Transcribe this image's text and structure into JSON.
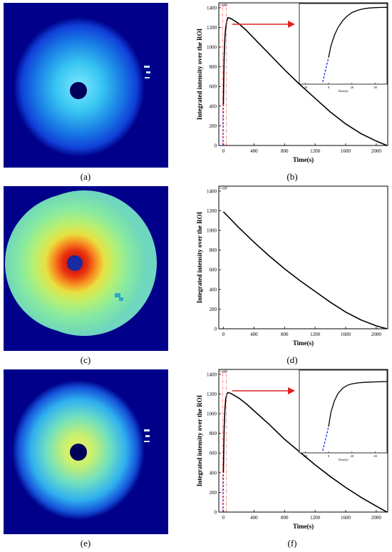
{
  "captions": {
    "a": "(a)",
    "b": "(b)",
    "c": "(c)",
    "d": "(d)",
    "e": "(e)",
    "f": "(f)"
  },
  "colors": {
    "image_background": "#00008a",
    "curve": "#000000",
    "pre_segment": "#1f3cff",
    "window": "#ff6060",
    "arrow": "#e02020"
  },
  "chart_data": [
    {
      "type": "line",
      "panel": "b",
      "ylabel": "Integrated intensity over the ROI",
      "xlabel": "Time(s)",
      "y_multiplier": "×10⁶",
      "xlim": [
        -60,
        2150
      ],
      "ylim": [
        0,
        1450
      ],
      "xticks": [
        0,
        400,
        800,
        1200,
        1600,
        2000
      ],
      "yticks": [
        0,
        200,
        400,
        600,
        800,
        1000,
        1200,
        1400
      ],
      "series": [
        {
          "style": "dashed-blue",
          "x": [
            -5,
            0
          ],
          "y": [
            0,
            420
          ]
        },
        {
          "style": "solid-black",
          "x": [
            0,
            5,
            10,
            20,
            30,
            45,
            60,
            100,
            200,
            300,
            400,
            600,
            800,
            1000,
            1200,
            1400,
            1600,
            1800,
            2000,
            2140
          ],
          "y": [
            420,
            700,
            900,
            1100,
            1200,
            1270,
            1300,
            1290,
            1240,
            1170,
            1090,
            930,
            770,
            620,
            480,
            340,
            220,
            120,
            45,
            0
          ]
        }
      ],
      "inset": {
        "xlim": [
          -25,
          50
        ],
        "xticks": [
          -20,
          0,
          20,
          40
        ],
        "xlabel": "Time(s)",
        "x": [
          -5,
          0,
          2,
          5,
          8,
          12,
          16,
          20,
          25,
          30,
          35,
          40,
          45,
          50
        ],
        "y": [
          0,
          420,
          620,
          800,
          930,
          1050,
          1130,
          1190,
          1230,
          1255,
          1268,
          1275,
          1278,
          1280
        ],
        "dashed_until": 0
      }
    },
    {
      "type": "line",
      "panel": "d",
      "ylabel": "Integrated intensity over the ROI",
      "xlabel": "Time(s)",
      "y_multiplier": "×10⁶",
      "xlim": [
        -60,
        2150
      ],
      "ylim": [
        0,
        1450
      ],
      "xticks": [
        0,
        400,
        800,
        1200,
        1600,
        2000
      ],
      "yticks": [
        0,
        200,
        400,
        600,
        800,
        1000,
        1200,
        1400
      ],
      "series": [
        {
          "style": "solid-black",
          "x": [
            0,
            100,
            200,
            400,
            600,
            800,
            1000,
            1200,
            1400,
            1600,
            1800,
            2000,
            2140
          ],
          "y": [
            1190,
            1110,
            1030,
            880,
            740,
            610,
            490,
            380,
            270,
            170,
            90,
            30,
            0
          ]
        }
      ]
    },
    {
      "type": "line",
      "panel": "f",
      "ylabel": "Integrated intensity over the ROI",
      "xlabel": "Time(s)",
      "y_multiplier": "×10⁶",
      "xlim": [
        -60,
        2150
      ],
      "ylim": [
        0,
        1450
      ],
      "xticks": [
        0,
        400,
        800,
        1200,
        1600,
        2000
      ],
      "yticks": [
        0,
        200,
        400,
        600,
        800,
        1000,
        1200,
        1400
      ],
      "series": [
        {
          "style": "dashed-blue",
          "x": [
            -5,
            0
          ],
          "y": [
            0,
            400
          ]
        },
        {
          "style": "solid-black",
          "x": [
            0,
            5,
            10,
            20,
            30,
            45,
            60,
            100,
            200,
            300,
            400,
            600,
            800,
            1000,
            1200,
            1400,
            1600,
            1800,
            2000,
            2140
          ],
          "y": [
            400,
            650,
            850,
            1050,
            1150,
            1200,
            1215,
            1205,
            1160,
            1100,
            1030,
            890,
            740,
            610,
            480,
            360,
            250,
            150,
            60,
            0
          ]
        }
      ],
      "inset": {
        "xlim": [
          -25,
          50
        ],
        "xticks": [
          -20,
          0,
          20,
          40
        ],
        "xlabel": "Time(s)",
        "x": [
          -5,
          0,
          2,
          5,
          8,
          12,
          16,
          20,
          25,
          30,
          35,
          40,
          45,
          50
        ],
        "y": [
          0,
          400,
          640,
          830,
          950,
          1040,
          1090,
          1115,
          1130,
          1138,
          1143,
          1147,
          1150,
          1152
        ],
        "dashed_until": 0
      }
    }
  ]
}
